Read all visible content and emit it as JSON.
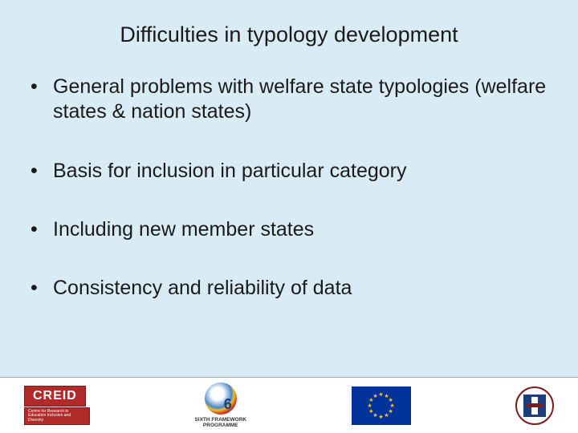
{
  "slide": {
    "background_color": "#d9ecf6",
    "title": "Difficulties in typology development",
    "title_fontsize": 27,
    "title_color": "#1a1a1a",
    "bullets": [
      "General problems with welfare state typologies (welfare states & nation states)",
      "Basis for inclusion in particular category",
      "Including new member states",
      "Consistency and reliability of data"
    ],
    "bullet_fontsize": 25,
    "bullet_color": "#1a1a1a"
  },
  "footer": {
    "background_color": "#ffffff",
    "logos": {
      "creid": {
        "text": "CREID",
        "subtitle": "Centre for Research in Education Inclusion and Diversity",
        "bg": "#b02a2a",
        "fg": "#ffffff"
      },
      "fp6": {
        "line1": "SIXTH FRAMEWORK",
        "line2": "PROGRAMME",
        "digit": "6"
      },
      "eu": {
        "bg": "#003399",
        "star_color": "#ffcc00",
        "star_count": 12
      },
      "edinburgh": {
        "ring_color": "#7a1c1c",
        "shield_color": "#1b3f7a"
      }
    }
  }
}
